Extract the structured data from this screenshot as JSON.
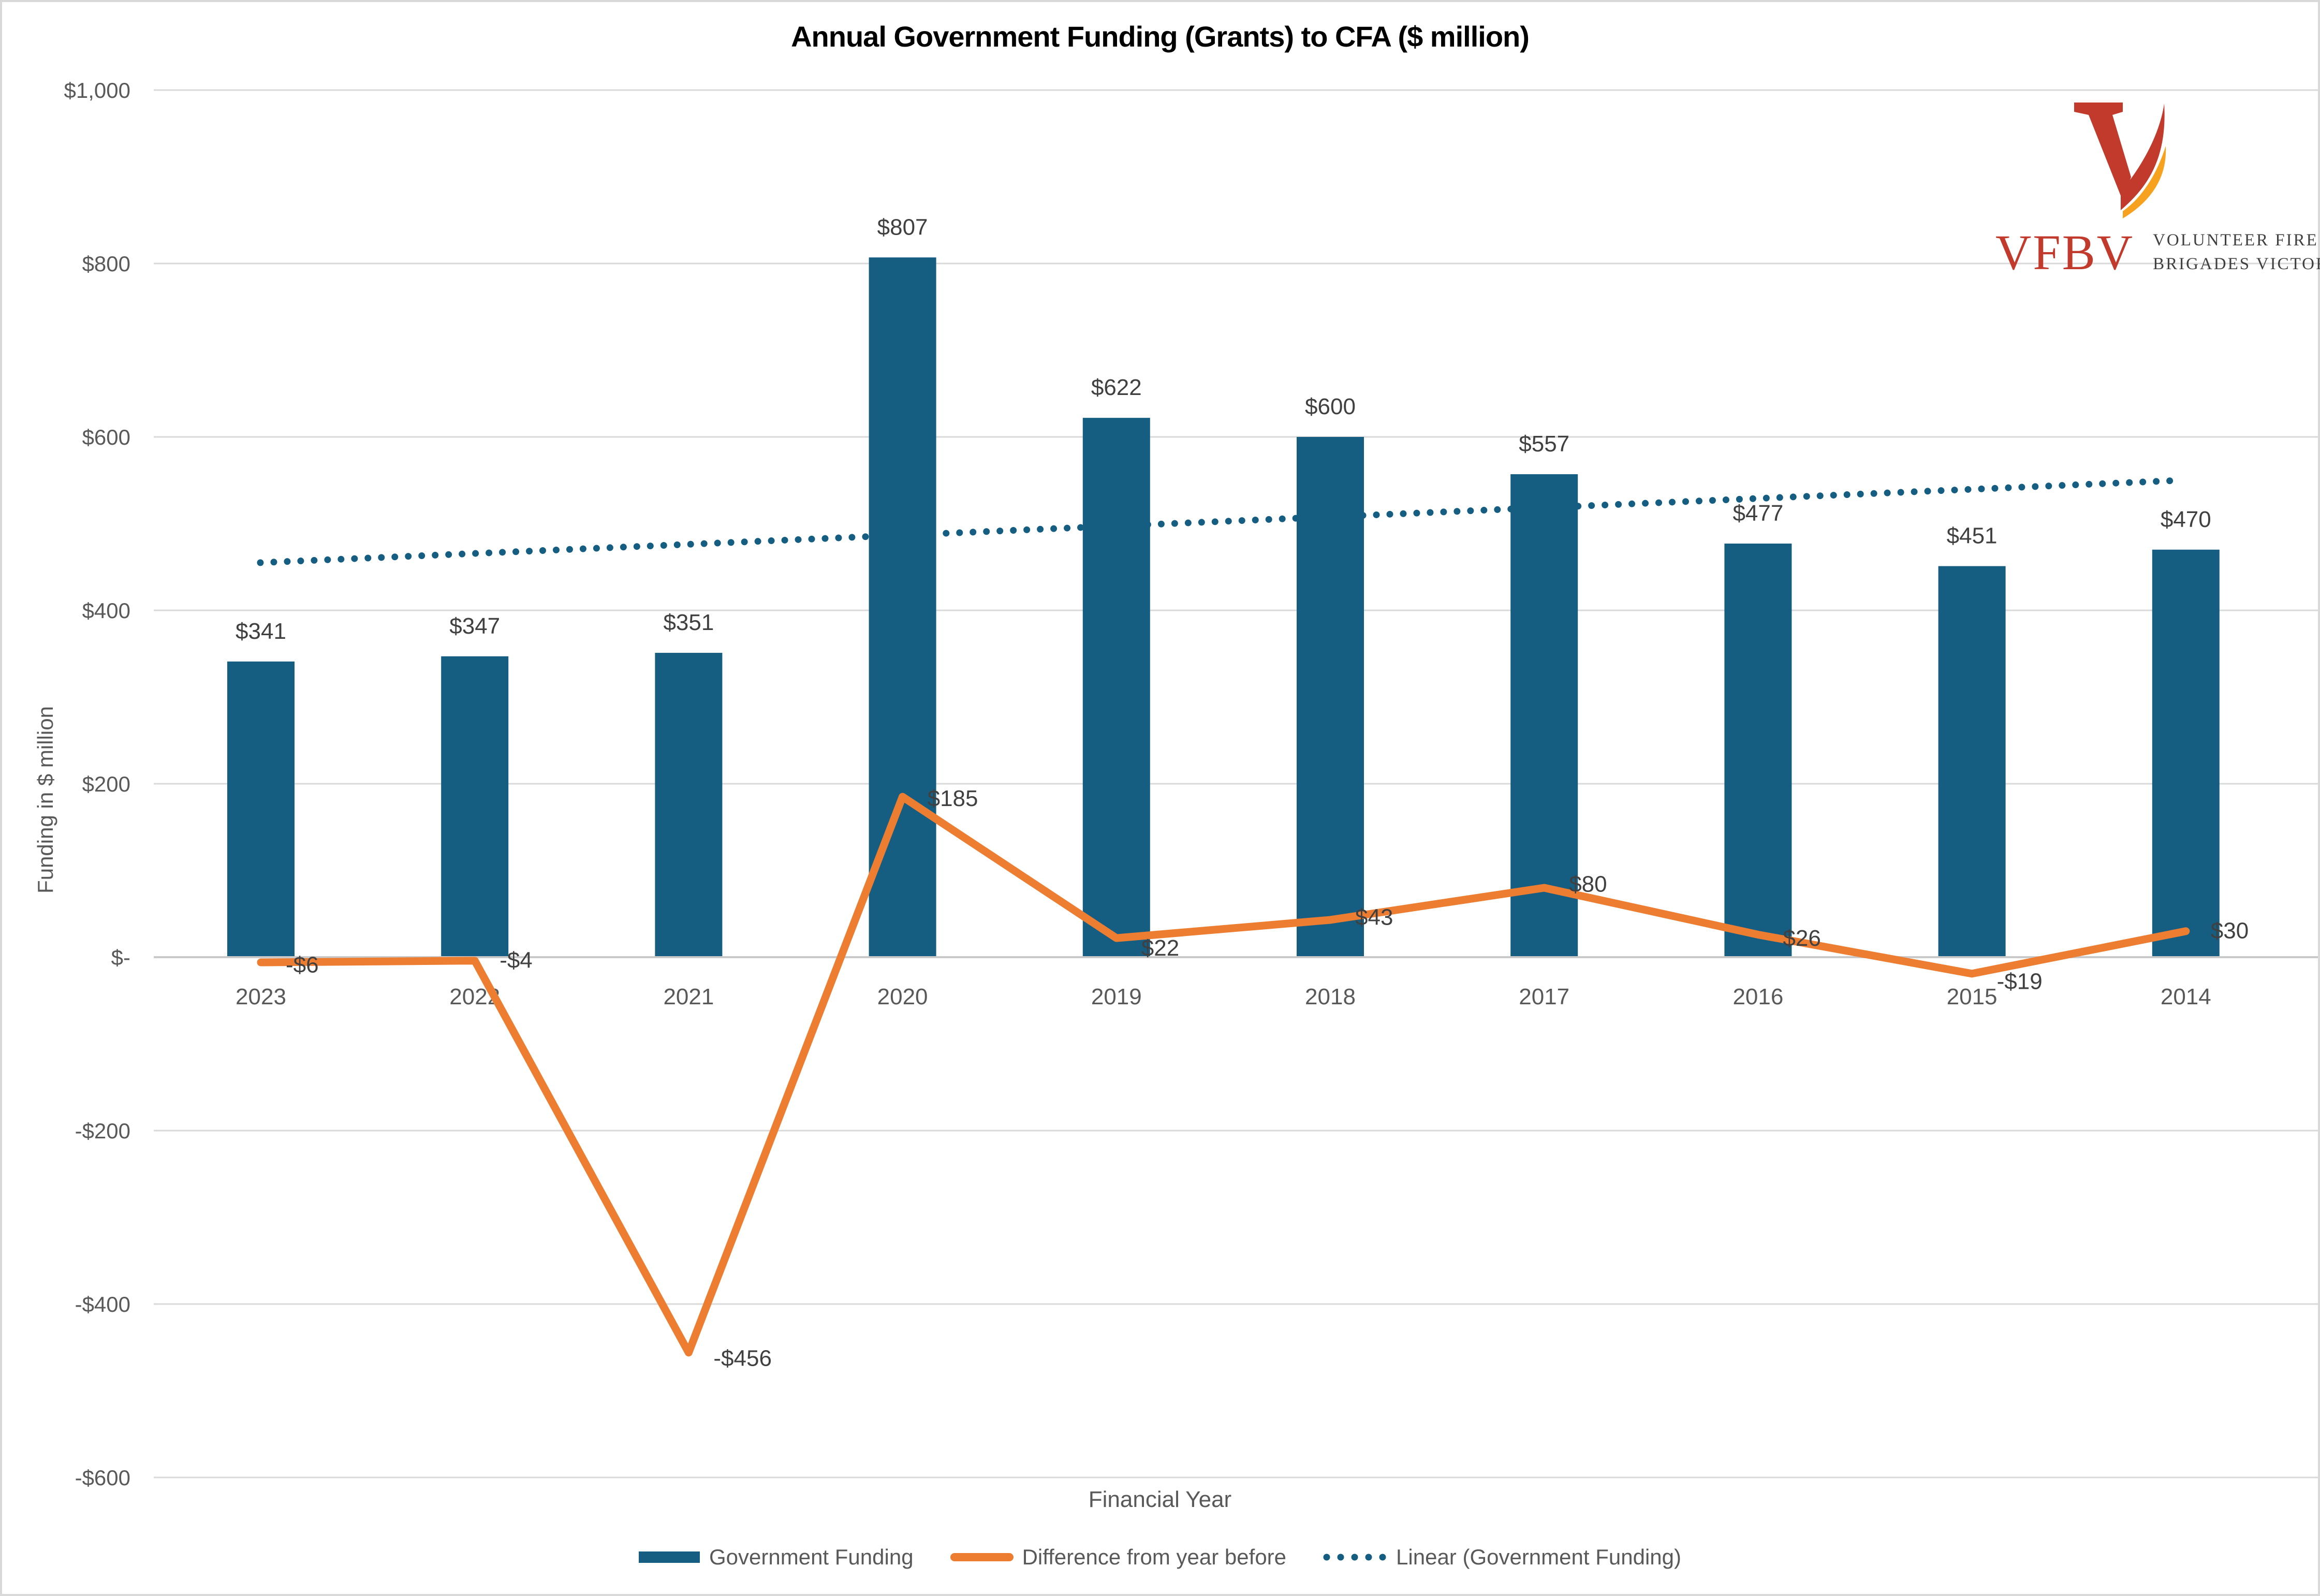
{
  "title": "Annual Government Funding (Grants) to CFA ($ million)",
  "logo": {
    "acronym": "VFBV",
    "org_line1": "VOLUNTEER FIRE",
    "org_line2": "BRIGADES VICTORIA",
    "red": "#c13a2c",
    "orange": "#f6a21e"
  },
  "chart_data": {
    "type": "bar",
    "title": "Annual Government Funding (Grants) to CFA ($ million)",
    "xlabel": "Financial Year",
    "ylabel": "Funding in $ million",
    "ylim": [
      -600,
      1000
    ],
    "ytick_step": 200,
    "ytick_labels": [
      "$1,000",
      "$800",
      "$600",
      "$400",
      "$200",
      "$-",
      "-$200",
      "-$400",
      "-$600"
    ],
    "grid": true,
    "legend_position": "bottom",
    "categories": [
      "2023",
      "2022",
      "2021",
      "2020",
      "2019",
      "2018",
      "2017",
      "2016",
      "2015",
      "2014"
    ],
    "series": [
      {
        "name": "Government Funding",
        "type": "bar",
        "color": "#165e81",
        "values": [
          341,
          347,
          351,
          807,
          622,
          600,
          557,
          477,
          451,
          470
        ],
        "labels": [
          "$341",
          "$347",
          "$351",
          "$807",
          "$622",
          "$600",
          "$557",
          "$477",
          "$451",
          "$470"
        ]
      },
      {
        "name": "Difference from year before",
        "type": "line",
        "color": "#ed7d31",
        "values": [
          -6,
          -4,
          -456,
          185,
          22,
          43,
          80,
          26,
          -19,
          30
        ],
        "labels": [
          "-$6",
          "-$4",
          "-$456",
          "$185",
          "$22",
          "$43",
          "$80",
          "$26",
          "-$19",
          "$30"
        ],
        "label_dy": [
          8,
          2,
          14,
          6,
          22,
          -2,
          -4,
          10,
          18,
          2
        ]
      },
      {
        "name": "Linear (Government Funding)",
        "type": "trendline",
        "style": "dotted",
        "color": "#165e81",
        "endpoints": [
          455,
          550
        ]
      }
    ]
  },
  "colors": {
    "gridline": "#d9d9d9",
    "axis_line": "#c9c9c9",
    "tick_text": "#595959",
    "data_label": "#404040"
  }
}
